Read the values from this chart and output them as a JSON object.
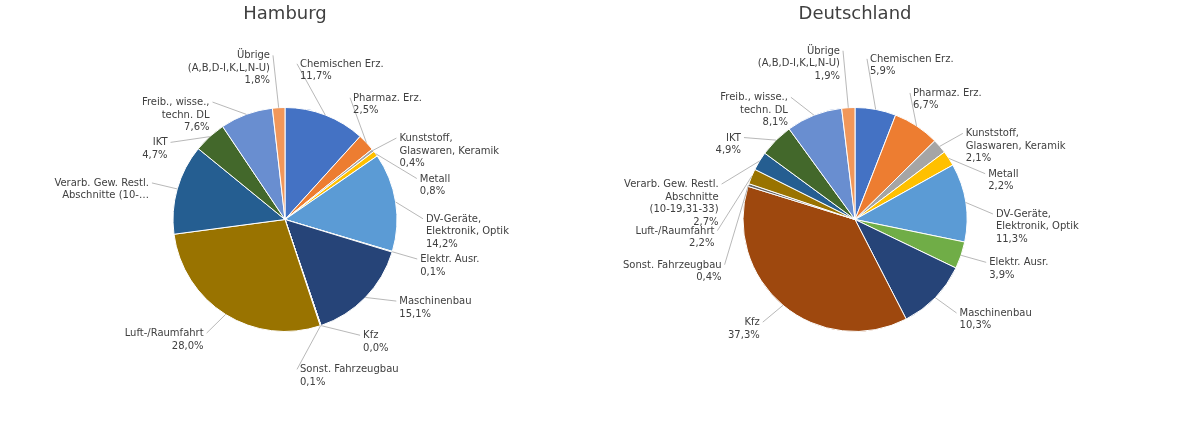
{
  "chart_data": [
    {
      "type": "pie",
      "title": "Hamburg",
      "categories": [
        "Chemischen Erz.",
        "Pharmaz. Erz.",
        "Kunststoff, Glaswaren, Keramik",
        "Metall",
        "DV-Geräte, Elektronik, Optik",
        "Elektr. Ausr.",
        "Maschinenbau",
        "Kfz",
        "Sonst. Fahrzeugbau",
        "Luft-/Raumfahrt",
        "Verarb. Gew. Restl. Abschnitte (10-…",
        "IKT",
        "Freib., wisse., techn. DL",
        "Übrige (A,B,D-I,K,L,N-U)"
      ],
      "values": [
        11.7,
        2.5,
        0.4,
        0.8,
        14.2,
        0.1,
        15.1,
        0.0,
        0.1,
        28.0,
        13.0,
        4.7,
        7.6,
        1.8
      ],
      "value_labels": [
        "11,7%",
        "2,5%",
        "0,4%",
        "0,8%",
        "14,2%",
        "0,1%",
        "15,1%",
        "0,0%",
        "0,1%",
        "28,0%",
        null,
        "4,7%",
        "7,6%",
        "1,8%"
      ],
      "colors": [
        "#4472c4",
        "#ed7d31",
        "#a5a5a5",
        "#ffc000",
        "#5b9bd5",
        "#70ad47",
        "#264478",
        "#9e480e",
        "#636363",
        "#997300",
        "#255e91",
        "#43682b",
        "#698ed0",
        "#f1975a"
      ]
    },
    {
      "type": "pie",
      "title": "Deutschland",
      "categories": [
        "Chemischen Erz.",
        "Pharmaz. Erz.",
        "Kunststoff, Glaswaren, Keramik",
        "Metall",
        "DV-Geräte, Elektronik, Optik",
        "Elektr. Ausr.",
        "Maschinenbau",
        "Kfz",
        "Sonst. Fahrzeugbau",
        "Luft-/Raumfahrt",
        "Verarb. Gew. Restl. Abschnitte (10-19,31-33)",
        "IKT",
        "Freib., wisse., techn. DL",
        "Übrige (A,B,D-I,K,L,N-U)"
      ],
      "values": [
        5.9,
        6.7,
        2.1,
        2.2,
        11.3,
        3.9,
        10.3,
        37.3,
        0.4,
        2.2,
        2.7,
        4.9,
        8.1,
        1.9
      ],
      "value_labels": [
        "5,9%",
        "6,7%",
        "2,1%",
        "2,2%",
        "11,3%",
        "3,9%",
        "10,3%",
        "37,3%",
        "0,4%",
        "2,2%",
        "2,7%",
        "4,9%",
        "8,1%",
        "1,9%"
      ],
      "colors": [
        "#4472c4",
        "#ed7d31",
        "#a5a5a5",
        "#ffc000",
        "#5b9bd5",
        "#70ad47",
        "#264478",
        "#9e480e",
        "#636363",
        "#997300",
        "#255e91",
        "#43682b",
        "#698ed0",
        "#f1975a"
      ]
    }
  ]
}
